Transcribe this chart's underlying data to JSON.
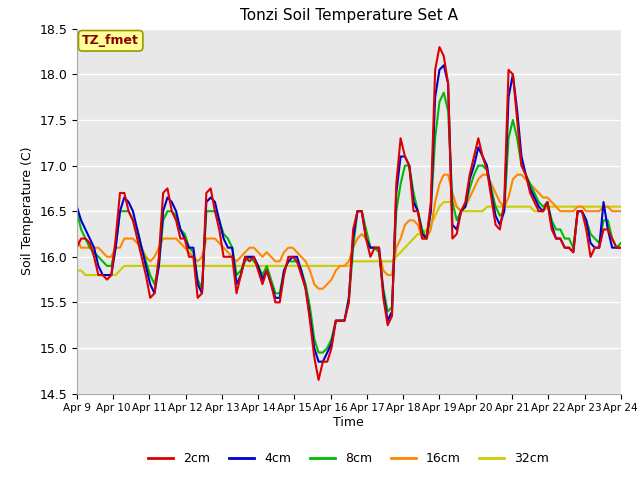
{
  "title": "Tonzi Soil Temperature Set A",
  "xlabel": "Time",
  "ylabel": "Soil Temperature (C)",
  "ylim": [
    14.5,
    18.5
  ],
  "annotation_label": "TZ_fmet",
  "annotation_color": "#8b0000",
  "annotation_bg": "#ffff99",
  "annotation_border": "#999900",
  "plot_bg": "#e8e8e8",
  "x_tick_labels": [
    "Apr 9",
    "Apr 10",
    "Apr 11",
    "Apr 12",
    "Apr 13",
    "Apr 14",
    "Apr 15",
    "Apr 16",
    "Apr 17",
    "Apr 18",
    "Apr 19",
    "Apr 20",
    "Apr 21",
    "Apr 22",
    "Apr 23",
    "Apr 24"
  ],
  "series": {
    "2cm": {
      "color": "#dd0000",
      "lw": 1.5
    },
    "4cm": {
      "color": "#0000cc",
      "lw": 1.5
    },
    "8cm": {
      "color": "#00bb00",
      "lw": 1.5
    },
    "16cm": {
      "color": "#ff8800",
      "lw": 1.5
    },
    "32cm": {
      "color": "#cccc00",
      "lw": 1.5
    }
  },
  "data_2cm": [
    16.1,
    16.2,
    16.2,
    16.15,
    16.0,
    15.8,
    15.8,
    15.75,
    15.8,
    16.2,
    16.7,
    16.7,
    16.5,
    16.4,
    16.2,
    16.0,
    15.8,
    15.55,
    15.6,
    16.0,
    16.7,
    16.75,
    16.5,
    16.4,
    16.2,
    16.2,
    16.0,
    16.0,
    15.55,
    15.6,
    16.7,
    16.75,
    16.5,
    16.3,
    16.0,
    16.0,
    16.0,
    15.6,
    15.8,
    16.0,
    15.95,
    16.0,
    15.85,
    15.7,
    15.85,
    15.7,
    15.5,
    15.5,
    15.8,
    16.0,
    16.0,
    15.95,
    15.8,
    15.65,
    15.3,
    14.9,
    14.65,
    14.85,
    14.85,
    15.0,
    15.3,
    15.3,
    15.3,
    15.5,
    16.3,
    16.5,
    16.5,
    16.2,
    16.0,
    16.1,
    16.1,
    15.55,
    15.25,
    15.35,
    16.8,
    17.3,
    17.1,
    17.0,
    16.5,
    16.5,
    16.2,
    16.2,
    16.6,
    18.05,
    18.3,
    18.2,
    17.9,
    16.2,
    16.25,
    16.5,
    16.6,
    16.9,
    17.1,
    17.3,
    17.1,
    16.95,
    16.65,
    16.35,
    16.3,
    16.6,
    18.05,
    18.0,
    17.5,
    17.0,
    16.9,
    16.7,
    16.6,
    16.5,
    16.5,
    16.6,
    16.3,
    16.2,
    16.2,
    16.1,
    16.1,
    16.05,
    16.5,
    16.5,
    16.3,
    16.0,
    16.1,
    16.1,
    16.3,
    16.3,
    16.2,
    16.1,
    16.1
  ],
  "data_4cm": [
    16.55,
    16.4,
    16.3,
    16.2,
    16.1,
    15.9,
    15.8,
    15.8,
    15.8,
    16.1,
    16.5,
    16.65,
    16.6,
    16.5,
    16.3,
    16.1,
    15.9,
    15.7,
    15.6,
    15.9,
    16.5,
    16.65,
    16.6,
    16.5,
    16.3,
    16.2,
    16.1,
    16.1,
    15.7,
    15.6,
    16.6,
    16.65,
    16.6,
    16.4,
    16.2,
    16.1,
    16.1,
    15.7,
    15.8,
    16.0,
    16.0,
    16.0,
    15.9,
    15.75,
    15.85,
    15.7,
    15.55,
    15.55,
    15.85,
    15.95,
    16.0,
    16.0,
    15.85,
    15.65,
    15.35,
    15.0,
    14.85,
    14.85,
    14.95,
    15.05,
    15.3,
    15.3,
    15.3,
    15.55,
    16.2,
    16.5,
    16.5,
    16.2,
    16.1,
    16.1,
    16.1,
    15.6,
    15.3,
    15.4,
    16.7,
    17.1,
    17.1,
    17.0,
    16.6,
    16.5,
    16.25,
    16.2,
    16.5,
    17.75,
    18.05,
    18.1,
    17.9,
    16.35,
    16.3,
    16.5,
    16.55,
    16.85,
    17.0,
    17.2,
    17.1,
    17.0,
    16.7,
    16.45,
    16.35,
    16.5,
    17.75,
    18.0,
    17.6,
    17.1,
    16.9,
    16.75,
    16.65,
    16.55,
    16.5,
    16.6,
    16.35,
    16.2,
    16.2,
    16.1,
    16.1,
    16.05,
    16.5,
    16.5,
    16.4,
    16.15,
    16.1,
    16.1,
    16.6,
    16.3,
    16.1,
    16.1,
    16.1
  ],
  "data_8cm": [
    16.5,
    16.3,
    16.2,
    16.1,
    16.05,
    16.0,
    15.95,
    15.9,
    15.9,
    16.1,
    16.5,
    16.5,
    16.5,
    16.4,
    16.3,
    16.1,
    15.95,
    15.8,
    15.7,
    15.9,
    16.4,
    16.5,
    16.5,
    16.45,
    16.3,
    16.25,
    16.1,
    16.05,
    15.75,
    15.65,
    16.5,
    16.5,
    16.5,
    16.4,
    16.25,
    16.2,
    16.1,
    15.8,
    15.85,
    15.95,
    16.0,
    15.95,
    15.9,
    15.8,
    15.9,
    15.75,
    15.6,
    15.6,
    15.85,
    15.95,
    15.95,
    15.95,
    15.85,
    15.7,
    15.45,
    15.1,
    14.95,
    14.95,
    15.0,
    15.1,
    15.3,
    15.3,
    15.3,
    15.5,
    16.1,
    16.5,
    16.5,
    16.3,
    16.1,
    16.1,
    16.05,
    15.65,
    15.4,
    15.45,
    16.5,
    16.8,
    17.0,
    17.0,
    16.7,
    16.5,
    16.3,
    16.2,
    16.5,
    17.3,
    17.7,
    17.8,
    17.6,
    16.6,
    16.4,
    16.5,
    16.55,
    16.75,
    16.9,
    17.0,
    17.0,
    16.95,
    16.75,
    16.55,
    16.45,
    16.5,
    17.3,
    17.5,
    17.3,
    17.0,
    16.9,
    16.8,
    16.7,
    16.6,
    16.55,
    16.6,
    16.4,
    16.3,
    16.3,
    16.2,
    16.2,
    16.1,
    16.5,
    16.5,
    16.4,
    16.25,
    16.2,
    16.15,
    16.4,
    16.4,
    16.2,
    16.1,
    16.15
  ],
  "data_16cm": [
    16.2,
    16.1,
    16.1,
    16.1,
    16.1,
    16.1,
    16.05,
    16.0,
    16.0,
    16.1,
    16.1,
    16.2,
    16.2,
    16.2,
    16.15,
    16.1,
    16.0,
    15.95,
    16.0,
    16.1,
    16.2,
    16.2,
    16.2,
    16.2,
    16.15,
    16.1,
    16.05,
    16.0,
    15.95,
    16.0,
    16.2,
    16.2,
    16.2,
    16.15,
    16.1,
    16.05,
    16.0,
    15.95,
    16.0,
    16.05,
    16.1,
    16.1,
    16.05,
    16.0,
    16.05,
    16.0,
    15.95,
    15.95,
    16.05,
    16.1,
    16.1,
    16.05,
    16.0,
    15.95,
    15.85,
    15.7,
    15.65,
    15.65,
    15.7,
    15.75,
    15.85,
    15.9,
    15.9,
    15.95,
    16.1,
    16.2,
    16.25,
    16.2,
    16.1,
    16.1,
    16.05,
    15.85,
    15.8,
    15.8,
    16.1,
    16.2,
    16.35,
    16.4,
    16.4,
    16.35,
    16.2,
    16.2,
    16.3,
    16.6,
    16.8,
    16.9,
    16.9,
    16.7,
    16.55,
    16.5,
    16.55,
    16.65,
    16.75,
    16.85,
    16.9,
    16.9,
    16.8,
    16.7,
    16.6,
    16.55,
    16.65,
    16.85,
    16.9,
    16.9,
    16.85,
    16.8,
    16.75,
    16.7,
    16.65,
    16.65,
    16.6,
    16.55,
    16.5,
    16.5,
    16.5,
    16.5,
    16.55,
    16.55,
    16.5,
    16.5,
    16.5,
    16.5,
    16.55,
    16.55,
    16.5,
    16.5,
    16.5
  ],
  "data_32cm": [
    15.85,
    15.85,
    15.8,
    15.8,
    15.8,
    15.8,
    15.8,
    15.8,
    15.8,
    15.8,
    15.85,
    15.9,
    15.9,
    15.9,
    15.9,
    15.9,
    15.9,
    15.9,
    15.9,
    15.9,
    15.9,
    15.9,
    15.9,
    15.9,
    15.9,
    15.9,
    15.9,
    15.9,
    15.9,
    15.9,
    15.9,
    15.9,
    15.9,
    15.9,
    15.9,
    15.9,
    15.9,
    15.9,
    15.9,
    15.9,
    15.9,
    15.9,
    15.9,
    15.9,
    15.9,
    15.9,
    15.9,
    15.9,
    15.9,
    15.9,
    15.9,
    15.9,
    15.9,
    15.9,
    15.9,
    15.9,
    15.9,
    15.9,
    15.9,
    15.9,
    15.9,
    15.9,
    15.9,
    15.9,
    15.95,
    15.95,
    15.95,
    15.95,
    15.95,
    15.95,
    15.95,
    15.95,
    15.95,
    15.95,
    16.0,
    16.05,
    16.1,
    16.15,
    16.2,
    16.25,
    16.25,
    16.3,
    16.35,
    16.45,
    16.55,
    16.6,
    16.6,
    16.6,
    16.55,
    16.5,
    16.5,
    16.5,
    16.5,
    16.5,
    16.5,
    16.55,
    16.55,
    16.55,
    16.55,
    16.55,
    16.55,
    16.55,
    16.55,
    16.55,
    16.55,
    16.55,
    16.5,
    16.5,
    16.5,
    16.55,
    16.55,
    16.55,
    16.55,
    16.55,
    16.55,
    16.55,
    16.55,
    16.55,
    16.55,
    16.55,
    16.55,
    16.55,
    16.55,
    16.55,
    16.55,
    16.55,
    16.55
  ]
}
